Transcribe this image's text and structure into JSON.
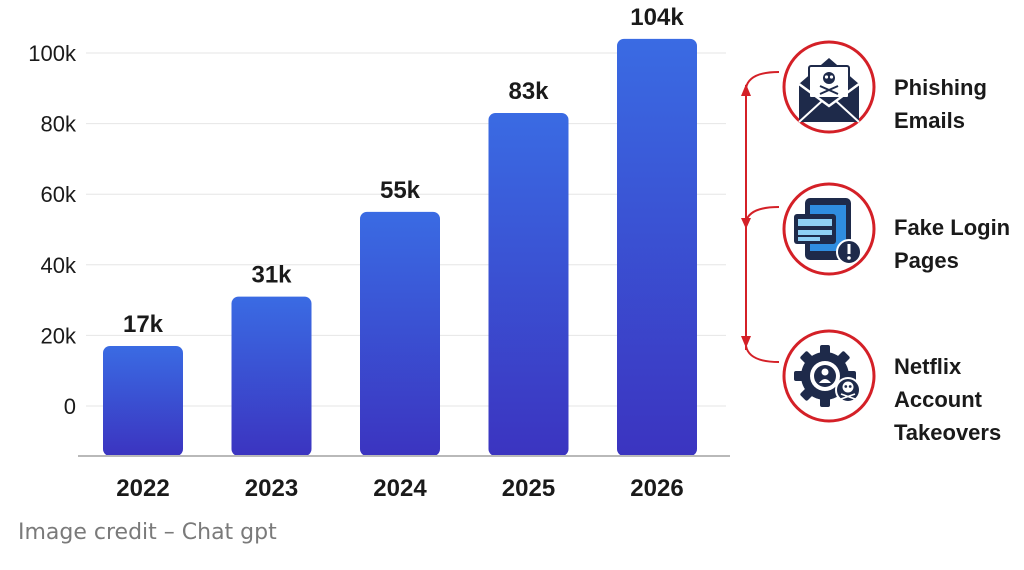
{
  "chart_data": {
    "type": "bar",
    "categories": [
      "2022",
      "2023",
      "2024",
      "2025",
      "2026"
    ],
    "values": [
      17000,
      31000,
      55000,
      83000,
      104000
    ],
    "data_labels": [
      "17k",
      "31k",
      "55k",
      "83k",
      "104k"
    ],
    "ylim": [
      0,
      100000
    ],
    "y_ticks": [
      0,
      20000,
      40000,
      60000,
      80000,
      100000
    ],
    "y_tick_labels": [
      "0",
      "20k",
      "40k",
      "60k",
      "80k",
      "100k"
    ],
    "title": "",
    "xlabel": "",
    "ylabel": "",
    "grid": true,
    "bar_gradient": [
      "#3a6be3",
      "#3b34c0"
    ]
  },
  "threats": [
    {
      "icon": "phishing-email-icon",
      "label": "Phishing\nEmails"
    },
    {
      "icon": "fake-login-icon",
      "label": "Fake Login\nPages"
    },
    {
      "icon": "account-takeover-icon",
      "label": "Netflix\nAccount\nTakeovers"
    }
  ],
  "credit": "Image credit – Chat gpt",
  "colors": {
    "accent_red": "#d42027",
    "icon_navy": "#1e2a4a",
    "icon_blue": "#2f8de0",
    "grid": "#e6e6e6",
    "axis": "#b9b9b9"
  }
}
